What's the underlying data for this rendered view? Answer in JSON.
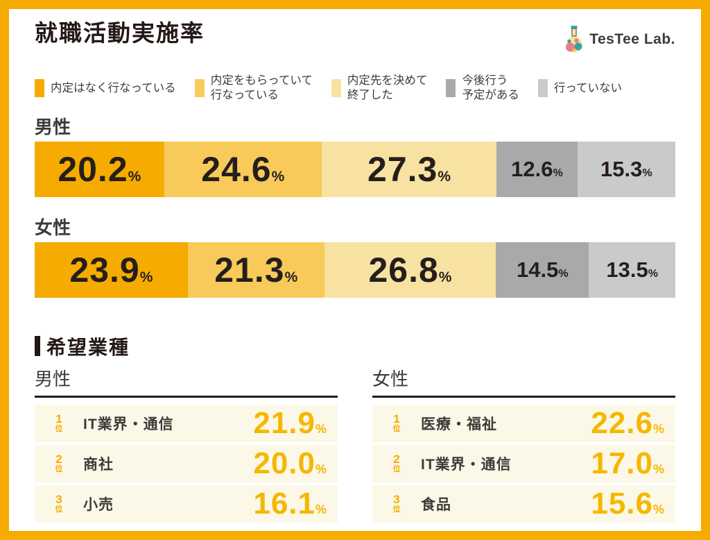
{
  "header": {
    "title": "就職活動実施率",
    "logo": {
      "text": "TesTee Lab."
    }
  },
  "legend": [
    {
      "lines": [
        "内定はなく行なっている"
      ],
      "color": "#F6AB00"
    },
    {
      "lines": [
        "内定をもらっていて",
        "行なっている"
      ],
      "color": "#F8CA5A"
    },
    {
      "lines": [
        "内定先を決めて",
        "終了した"
      ],
      "color": "#F7E2A2"
    },
    {
      "lines": [
        "今後行う",
        "予定がある"
      ],
      "color": "#A8A9A9"
    },
    {
      "lines": [
        "行っていない"
      ],
      "color": "#C9CACA"
    }
  ],
  "chart_data": {
    "type": "bar",
    "subtype": "horizontal-stacked",
    "title": "就職活動実施率",
    "unit": "%",
    "categories": [
      "男性",
      "女性"
    ],
    "series": [
      {
        "name": "内定はなく行なっている",
        "color": "#F6AB00",
        "values": [
          20.2,
          23.9
        ]
      },
      {
        "name": "内定をもらっていて行なっている",
        "color": "#F8CA5A",
        "values": [
          24.6,
          21.3
        ]
      },
      {
        "name": "内定先を決めて終了した",
        "color": "#F7E2A2",
        "values": [
          27.3,
          26.8
        ]
      },
      {
        "name": "今後行う予定がある",
        "color": "#A8A9A9",
        "values": [
          12.6,
          14.5
        ]
      },
      {
        "name": "行っていない",
        "color": "#C9CACA",
        "values": [
          15.3,
          13.5
        ]
      }
    ],
    "xlim": [
      0,
      100
    ],
    "value_labels_on_bars": true,
    "legend_position": "top"
  },
  "ranking": {
    "section_title": "希望業種",
    "tables": [
      {
        "group": "男性",
        "rows": [
          {
            "rank": "1",
            "rank_unit": "位",
            "label": "IT業界・通信",
            "value": "21.9",
            "unit": "%"
          },
          {
            "rank": "2",
            "rank_unit": "位",
            "label": "商社",
            "value": "20.0",
            "unit": "%"
          },
          {
            "rank": "3",
            "rank_unit": "位",
            "label": "小売",
            "value": "16.1",
            "unit": "%"
          }
        ]
      },
      {
        "group": "女性",
        "rows": [
          {
            "rank": "1",
            "rank_unit": "位",
            "label": "医療・福祉",
            "value": "22.6",
            "unit": "%"
          },
          {
            "rank": "2",
            "rank_unit": "位",
            "label": "IT業界・通信",
            "value": "17.0",
            "unit": "%"
          },
          {
            "rank": "3",
            "rank_unit": "位",
            "label": "食品",
            "value": "15.6",
            "unit": "%"
          }
        ]
      }
    ]
  }
}
